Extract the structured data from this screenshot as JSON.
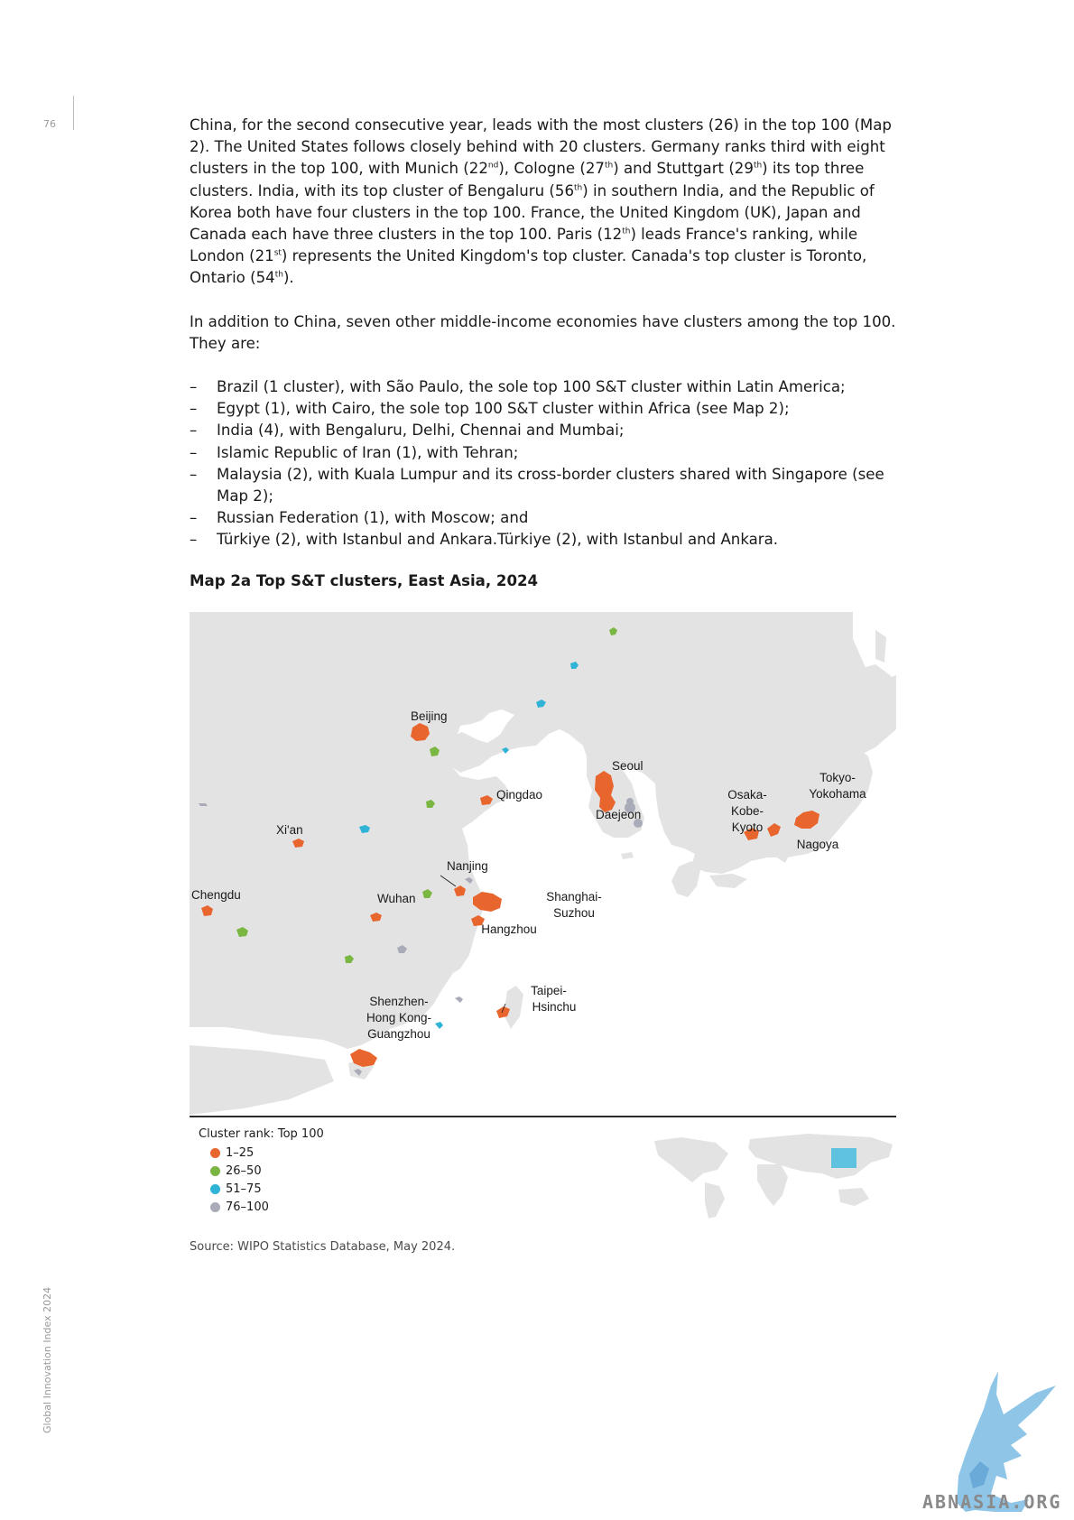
{
  "page": {
    "number": "76",
    "side_label": "Global Innovation Index 2024"
  },
  "paragraphs": {
    "p1": {
      "a": "China, for the second consecutive year, leads with the most clusters (26) in the top 100 (Map 2). The United States follows closely behind with 20 clusters. Germany ranks third with eight clusters in the top 100, with Munich (22",
      "sup1": "nd",
      "b": "), Cologne (27",
      "sup2": "th",
      "c": ") and Stuttgart (29",
      "sup3": "th",
      "d": ") its top three clusters. India, with its top cluster of Bengaluru (56",
      "sup4": "th",
      "e": ") in southern India, and the Republic of Korea both have four clusters in the top 100. France, the United Kingdom (UK), Japan and Canada each have three clusters in the top 100. Paris (12",
      "sup5": "th",
      "f": ") leads France's ranking, while London (21",
      "sup6": "st",
      "g": ") represents the United Kingdom's top cluster. Canada's top cluster is Toronto, Ontario (54",
      "sup7": "th",
      "h": ")."
    },
    "p2": "In addition to China, seven other middle-income economies have clusters among the top 100. They are:"
  },
  "bullets": {
    "dash": "–",
    "items": [
      "Brazil (1 cluster), with São Paulo, the sole top 100 S&T cluster within Latin America;",
      "Egypt (1), with Cairo, the sole top 100 S&T cluster within Africa (see Map 2);",
      "India (4), with Bengaluru, Delhi, Chennai and Mumbai;",
      "Islamic Republic of Iran (1), with Tehran;",
      "Malaysia (2), with Kuala Lumpur and its cross-border clusters shared with Singapore (see Map 2);",
      "Russian Federation (1), with Moscow; and",
      "Türkiye (2), with Istanbul and Ankara.Türkiye (2), with Istanbul and Ankara."
    ]
  },
  "figure": {
    "title": "Map 2a Top S&T clusters, East Asia, 2024",
    "cities": {
      "beijing": "Beijing",
      "seoul": "Seoul",
      "qingdao": "Qingdao",
      "daejeon": "Daejeon",
      "osaka1": "Osaka-",
      "osaka2": "Kobe-",
      "osaka3": "Kyoto",
      "tokyo1": "Tokyo-",
      "tokyo2": "Yokohama",
      "xian": "Xi'an",
      "nagoya": "Nagoya",
      "nanjing": "Nanjing",
      "chengdu": "Chengdu",
      "wuhan": "Wuhan",
      "shanghai1": "Shanghai-",
      "shanghai2": "Suzhou",
      "hangzhou": "Hangzhou",
      "taipei1": "Taipei-",
      "taipei2": "Hsinchu",
      "shenzhen1": "Shenzhen-",
      "shenzhen2": "Hong Kong-",
      "shenzhen3": "Guangzhou"
    },
    "legend": {
      "title": "Cluster rank: Top 100",
      "items": [
        {
          "label": "1–25",
          "color": "#e8652d"
        },
        {
          "label": "26–50",
          "color": "#7ab642"
        },
        {
          "label": "51–75",
          "color": "#2fb3d6"
        },
        {
          "label": "76–100",
          "color": "#a9acb8"
        }
      ]
    },
    "colors": {
      "land": "#e3e3e3",
      "sea": "#ffffff",
      "inset_highlight": "#5fc3e0"
    }
  },
  "source": "Source: WIPO Statistics Database, May 2024.",
  "watermark": "ABNASIA.ORG"
}
